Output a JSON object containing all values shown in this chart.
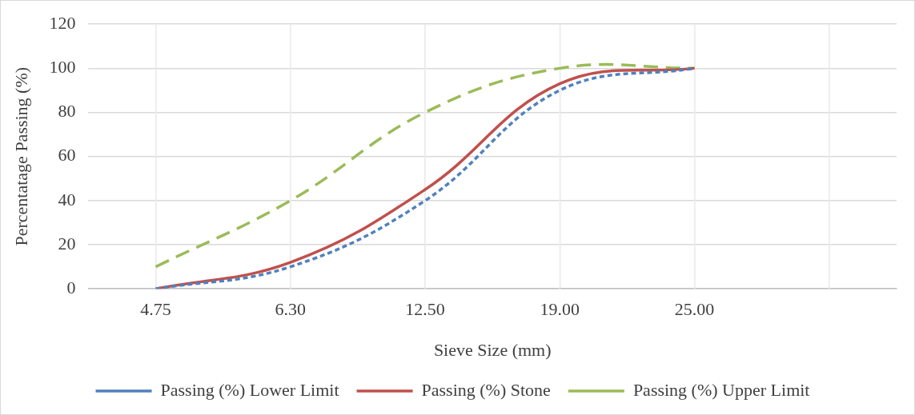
{
  "chart_data": {
    "type": "line",
    "xlabel": "Sieve Size (mm)",
    "ylabel": "Percentatage Passing (%)",
    "categories": [
      "4.75",
      "6.30",
      "12.50",
      "19.00",
      "25.00",
      null
    ],
    "series": [
      {
        "name": "Passing (%) Lower Limit",
        "color": "#4f81bd",
        "line_style": "dotted",
        "values": [
          0,
          10,
          40,
          90,
          100,
          null
        ]
      },
      {
        "name": "Passing (%) Stone",
        "color": "#c0504d",
        "line_style": "solid",
        "values": [
          0,
          12,
          45,
          93,
          100,
          null
        ]
      },
      {
        "name": "Passing (%) Upper Limit",
        "color": "#9bbb59",
        "line_style": "dashed",
        "values": [
          10,
          40,
          80,
          100,
          100,
          null
        ]
      }
    ],
    "ylim": [
      0,
      120
    ],
    "yticks": [
      0,
      20,
      40,
      60,
      80,
      100,
      120
    ],
    "grid": true,
    "legend": "bottom",
    "marker": "none"
  }
}
